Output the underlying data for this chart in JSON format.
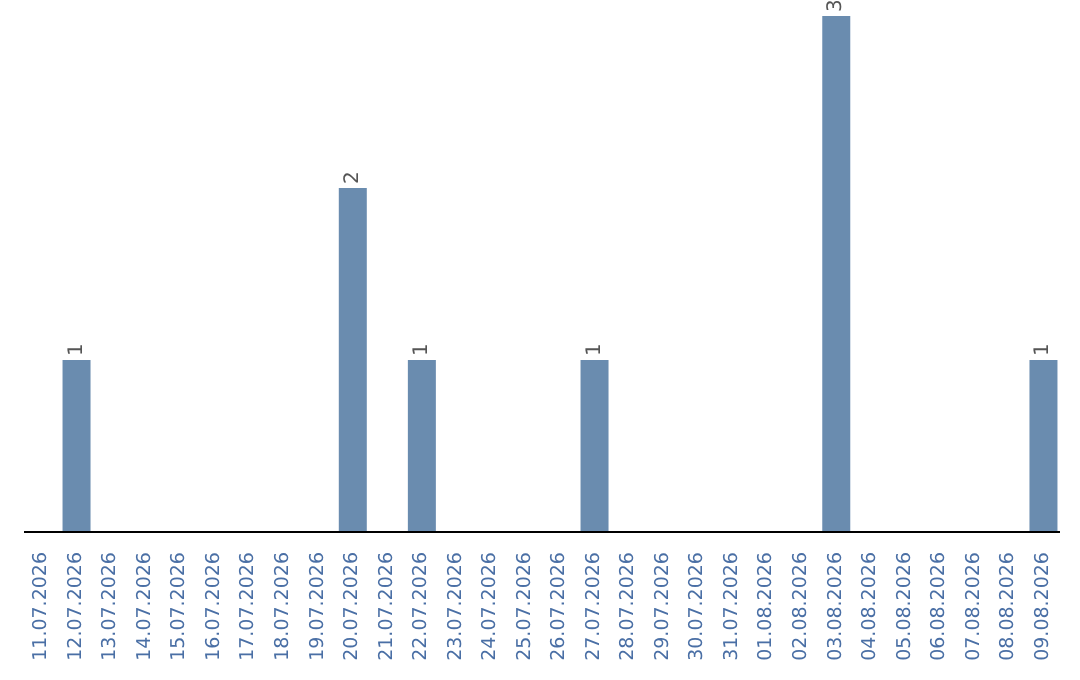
{
  "chart_data": {
    "type": "bar",
    "categories": [
      "11.07.2026",
      "12.07.2026",
      "13.07.2026",
      "14.07.2026",
      "15.07.2026",
      "16.07.2026",
      "17.07.2026",
      "18.07.2026",
      "19.07.2026",
      "20.07.2026",
      "21.07.2026",
      "22.07.2026",
      "23.07.2026",
      "24.07.2026",
      "25.07.2026",
      "26.07.2026",
      "27.07.2026",
      "28.07.2026",
      "29.07.2026",
      "30.07.2026",
      "31.07.2026",
      "01.08.2026",
      "02.08.2026",
      "03.08.2026",
      "04.08.2026",
      "05.08.2026",
      "06.08.2026",
      "07.08.2026",
      "08.08.2026",
      "09.08.2026"
    ],
    "values": [
      0,
      1,
      0,
      0,
      0,
      0,
      0,
      0,
      0,
      2,
      0,
      1,
      0,
      0,
      0,
      0,
      1,
      0,
      0,
      0,
      0,
      0,
      0,
      3,
      0,
      0,
      0,
      0,
      0,
      1
    ],
    "value_labels": [
      null,
      "1",
      null,
      null,
      null,
      null,
      null,
      null,
      null,
      "2",
      null,
      "1",
      null,
      null,
      null,
      null,
      "1",
      null,
      null,
      null,
      null,
      null,
      null,
      "3",
      null,
      null,
      null,
      null,
      null,
      "1"
    ],
    "color": "#6a8caf",
    "tick_labels": "x"
  }
}
